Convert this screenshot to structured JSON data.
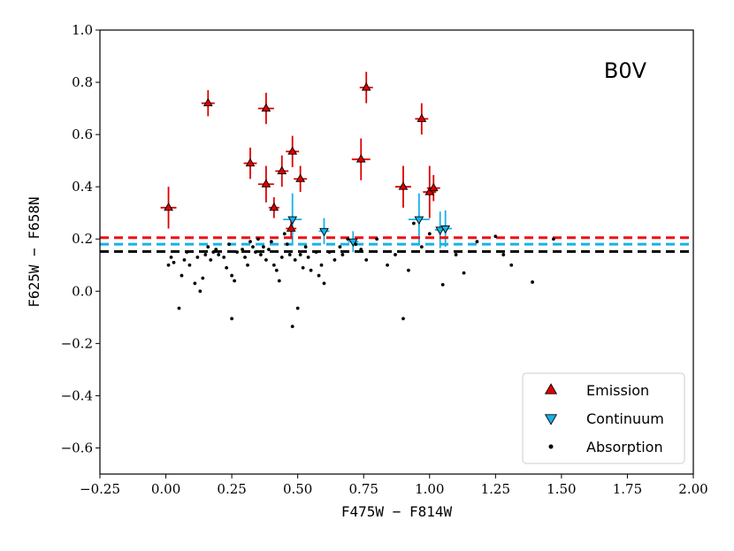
{
  "chart_data": {
    "type": "scatter",
    "title": "",
    "annotation": "B0V",
    "xlabel": "F475W − F814W",
    "ylabel": "F625W − F658N",
    "xlim": [
      -0.25,
      2.0
    ],
    "ylim": [
      -0.7,
      1.0
    ],
    "xticks": [
      -0.25,
      0.0,
      0.25,
      0.5,
      0.75,
      1.0,
      1.25,
      1.5,
      1.75,
      2.0
    ],
    "xtick_labels": [
      "−0.25",
      "0.00",
      "0.25",
      "0.50",
      "0.75",
      "1.00",
      "1.25",
      "1.50",
      "1.75",
      "2.00"
    ],
    "yticks": [
      -0.6,
      -0.4,
      -0.2,
      0.0,
      0.2,
      0.4,
      0.6,
      0.8,
      1.0
    ],
    "ytick_labels": [
      "−0.6",
      "−0.4",
      "−0.2",
      "0.0",
      "0.2",
      "0.4",
      "0.6",
      "0.8",
      "1.0"
    ],
    "grid": false,
    "legend_position": "bottom-right",
    "colors": {
      "emission": "#dd0000",
      "continuum": "#1ab0e8",
      "absorption": "#000000"
    },
    "thresholds": [
      {
        "name": "emission-threshold",
        "y": 0.205,
        "color": "#ee1111"
      },
      {
        "name": "continuum-threshold",
        "y": 0.18,
        "color": "#1ab0e8"
      },
      {
        "name": "absorption-threshold",
        "y": 0.152,
        "color": "#000000"
      }
    ],
    "series": [
      {
        "name": "Emission",
        "marker": "triangle-up",
        "points": [
          {
            "x": 0.01,
            "y": 0.32,
            "xerr": 0.03,
            "yerr": 0.08
          },
          {
            "x": 0.16,
            "y": 0.72,
            "xerr": 0.025,
            "yerr": 0.05
          },
          {
            "x": 0.32,
            "y": 0.49,
            "xerr": 0.025,
            "yerr": 0.06
          },
          {
            "x": 0.38,
            "y": 0.7,
            "xerr": 0.03,
            "yerr": 0.06
          },
          {
            "x": 0.38,
            "y": 0.41,
            "xerr": 0.03,
            "yerr": 0.07
          },
          {
            "x": 0.41,
            "y": 0.32,
            "xerr": 0.02,
            "yerr": 0.04
          },
          {
            "x": 0.44,
            "y": 0.46,
            "xerr": 0.025,
            "yerr": 0.06
          },
          {
            "x": 0.48,
            "y": 0.535,
            "xerr": 0.025,
            "yerr": 0.06
          },
          {
            "x": 0.475,
            "y": 0.24,
            "xerr": 0.02,
            "yerr": 0.04
          },
          {
            "x": 0.51,
            "y": 0.43,
            "xerr": 0.025,
            "yerr": 0.05
          },
          {
            "x": 0.74,
            "y": 0.505,
            "xerr": 0.035,
            "yerr": 0.08
          },
          {
            "x": 0.76,
            "y": 0.78,
            "xerr": 0.025,
            "yerr": 0.06
          },
          {
            "x": 0.9,
            "y": 0.4,
            "xerr": 0.03,
            "yerr": 0.08
          },
          {
            "x": 0.97,
            "y": 0.66,
            "xerr": 0.025,
            "yerr": 0.06
          },
          {
            "x": 1.0,
            "y": 0.38,
            "xerr": 0.025,
            "yerr": 0.1
          },
          {
            "x": 1.015,
            "y": 0.395,
            "xerr": 0.025,
            "yerr": 0.05
          }
        ]
      },
      {
        "name": "Continuum",
        "marker": "triangle-down",
        "points": [
          {
            "x": 0.48,
            "y": 0.275,
            "xerr": 0.035,
            "yerr": 0.1
          },
          {
            "x": 0.6,
            "y": 0.23,
            "xerr": 0.02,
            "yerr": 0.05
          },
          {
            "x": 0.71,
            "y": 0.19,
            "xerr": 0.02,
            "yerr": 0.04
          },
          {
            "x": 0.96,
            "y": 0.275,
            "xerr": 0.04,
            "yerr": 0.1
          },
          {
            "x": 1.04,
            "y": 0.235,
            "xerr": 0.02,
            "yerr": 0.07
          },
          {
            "x": 1.06,
            "y": 0.24,
            "xerr": 0.025,
            "yerr": 0.07
          }
        ]
      },
      {
        "name": "Absorption",
        "marker": "dot",
        "points": [
          {
            "x": 0.01,
            "y": 0.1
          },
          {
            "x": 0.02,
            "y": 0.13
          },
          {
            "x": 0.03,
            "y": 0.11
          },
          {
            "x": 0.05,
            "y": -0.065
          },
          {
            "x": 0.06,
            "y": 0.06
          },
          {
            "x": 0.07,
            "y": 0.12
          },
          {
            "x": 0.08,
            "y": 0.15
          },
          {
            "x": 0.09,
            "y": 0.1
          },
          {
            "x": 0.11,
            "y": 0.03
          },
          {
            "x": 0.12,
            "y": 0.13
          },
          {
            "x": 0.13,
            "y": 0.0
          },
          {
            "x": 0.14,
            "y": 0.05
          },
          {
            "x": 0.15,
            "y": 0.14
          },
          {
            "x": 0.16,
            "y": 0.17
          },
          {
            "x": 0.17,
            "y": 0.12
          },
          {
            "x": 0.18,
            "y": 0.15
          },
          {
            "x": 0.19,
            "y": 0.16
          },
          {
            "x": 0.2,
            "y": 0.14
          },
          {
            "x": 0.22,
            "y": 0.13
          },
          {
            "x": 0.23,
            "y": 0.09
          },
          {
            "x": 0.24,
            "y": 0.18
          },
          {
            "x": 0.25,
            "y": -0.105
          },
          {
            "x": 0.25,
            "y": 0.06
          },
          {
            "x": 0.26,
            "y": 0.04
          },
          {
            "x": 0.27,
            "y": 0.15
          },
          {
            "x": 0.29,
            "y": 0.16
          },
          {
            "x": 0.3,
            "y": 0.13
          },
          {
            "x": 0.31,
            "y": 0.1
          },
          {
            "x": 0.32,
            "y": 0.19
          },
          {
            "x": 0.33,
            "y": 0.17
          },
          {
            "x": 0.34,
            "y": 0.15
          },
          {
            "x": 0.35,
            "y": 0.2
          },
          {
            "x": 0.36,
            "y": 0.14
          },
          {
            "x": 0.37,
            "y": 0.17
          },
          {
            "x": 0.38,
            "y": 0.12
          },
          {
            "x": 0.39,
            "y": 0.16
          },
          {
            "x": 0.4,
            "y": 0.19
          },
          {
            "x": 0.41,
            "y": 0.1
          },
          {
            "x": 0.42,
            "y": 0.08
          },
          {
            "x": 0.43,
            "y": 0.04
          },
          {
            "x": 0.44,
            "y": 0.13
          },
          {
            "x": 0.45,
            "y": 0.22
          },
          {
            "x": 0.46,
            "y": 0.18
          },
          {
            "x": 0.47,
            "y": 0.14
          },
          {
            "x": 0.48,
            "y": -0.135
          },
          {
            "x": 0.49,
            "y": 0.12
          },
          {
            "x": 0.5,
            "y": -0.065
          },
          {
            "x": 0.51,
            "y": 0.14
          },
          {
            "x": 0.52,
            "y": 0.09
          },
          {
            "x": 0.53,
            "y": 0.17
          },
          {
            "x": 0.54,
            "y": 0.13
          },
          {
            "x": 0.55,
            "y": 0.08
          },
          {
            "x": 0.57,
            "y": 0.15
          },
          {
            "x": 0.58,
            "y": 0.06
          },
          {
            "x": 0.59,
            "y": 0.1
          },
          {
            "x": 0.6,
            "y": 0.03
          },
          {
            "x": 0.62,
            "y": 0.15
          },
          {
            "x": 0.64,
            "y": 0.12
          },
          {
            "x": 0.66,
            "y": 0.17
          },
          {
            "x": 0.67,
            "y": 0.14
          },
          {
            "x": 0.69,
            "y": 0.2
          },
          {
            "x": 0.72,
            "y": 0.18
          },
          {
            "x": 0.74,
            "y": 0.16
          },
          {
            "x": 0.76,
            "y": 0.12
          },
          {
            "x": 0.8,
            "y": 0.2
          },
          {
            "x": 0.84,
            "y": 0.1
          },
          {
            "x": 0.87,
            "y": 0.14
          },
          {
            "x": 0.9,
            "y": -0.105
          },
          {
            "x": 0.92,
            "y": 0.08
          },
          {
            "x": 0.94,
            "y": 0.26
          },
          {
            "x": 0.97,
            "y": 0.17
          },
          {
            "x": 1.0,
            "y": 0.22
          },
          {
            "x": 1.05,
            "y": 0.025
          },
          {
            "x": 1.1,
            "y": 0.14
          },
          {
            "x": 1.13,
            "y": 0.07
          },
          {
            "x": 1.18,
            "y": 0.19
          },
          {
            "x": 1.25,
            "y": 0.21
          },
          {
            "x": 1.28,
            "y": 0.14
          },
          {
            "x": 1.31,
            "y": 0.1
          },
          {
            "x": 1.39,
            "y": 0.035
          },
          {
            "x": 1.47,
            "y": 0.2
          }
        ]
      }
    ]
  },
  "legend": {
    "items": [
      {
        "label": "Emission",
        "marker": "triangle-up"
      },
      {
        "label": "Continuum",
        "marker": "triangle-down"
      },
      {
        "label": "Absorption",
        "marker": "dot"
      }
    ]
  }
}
